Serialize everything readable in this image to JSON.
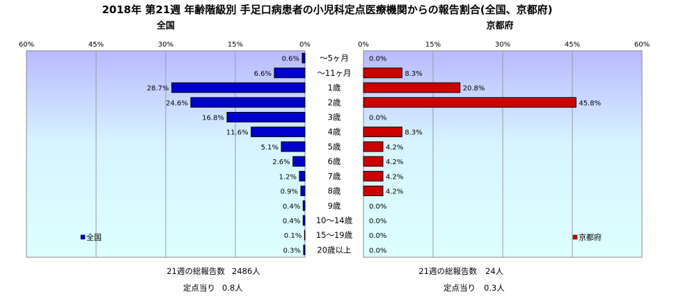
{
  "chart_data": {
    "type": "bar",
    "title": "2018年 第21週 年齢階級別 手足口病患者の小児科定点医療機関からの報告割合(全国、京都府)",
    "categories": [
      "～5ヶ月",
      "～11ヶ月",
      "1歳",
      "2歳",
      "3歳",
      "4歳",
      "5歳",
      "6歳",
      "7歳",
      "8歳",
      "9歳",
      "10～14歳",
      "15～19歳",
      "20歳以上"
    ],
    "ticks": [
      "60%",
      "45%",
      "30%",
      "15%",
      "0%"
    ],
    "ticks_right": [
      "0%",
      "15%",
      "30%",
      "45%",
      "60%"
    ],
    "xlim": [
      0,
      60
    ],
    "series": [
      {
        "name": "全国",
        "panel_title": "全国",
        "color": "#0000cc",
        "values": [
          0.6,
          6.6,
          28.7,
          24.6,
          16.8,
          11.6,
          5.1,
          2.6,
          1.2,
          0.9,
          0.4,
          0.4,
          0.1,
          0.3
        ],
        "labels": [
          "0.6%",
          "6.6%",
          "28.7%",
          "24.6%",
          "16.8%",
          "11.6%",
          "5.1%",
          "2.6%",
          "1.2%",
          "0.9%",
          "0.4%",
          "0.4%",
          "0.1%",
          "0.3%"
        ]
      },
      {
        "name": "京都府",
        "panel_title": "京都府",
        "color": "#cc0000",
        "values": [
          0.0,
          8.3,
          20.8,
          45.8,
          0.0,
          8.3,
          4.2,
          4.2,
          4.2,
          4.2,
          0.0,
          0.0,
          0.0,
          0.0
        ],
        "labels": [
          "0.0%",
          "8.3%",
          "20.8%",
          "45.8%",
          "0.0%",
          "8.3%",
          "4.2%",
          "4.2%",
          "4.2%",
          "4.2%",
          "0.0%",
          "0.0%",
          "0.0%",
          "0.0%"
        ]
      }
    ],
    "footer": {
      "left": {
        "total_label": "21週の総報告数",
        "total_value": "2486人",
        "per_label": "定点当り",
        "per_value": "0.8人"
      },
      "right": {
        "total_label": "21週の総報告数",
        "total_value": "24人",
        "per_label": "定点当り",
        "per_value": "0.3人"
      }
    }
  }
}
